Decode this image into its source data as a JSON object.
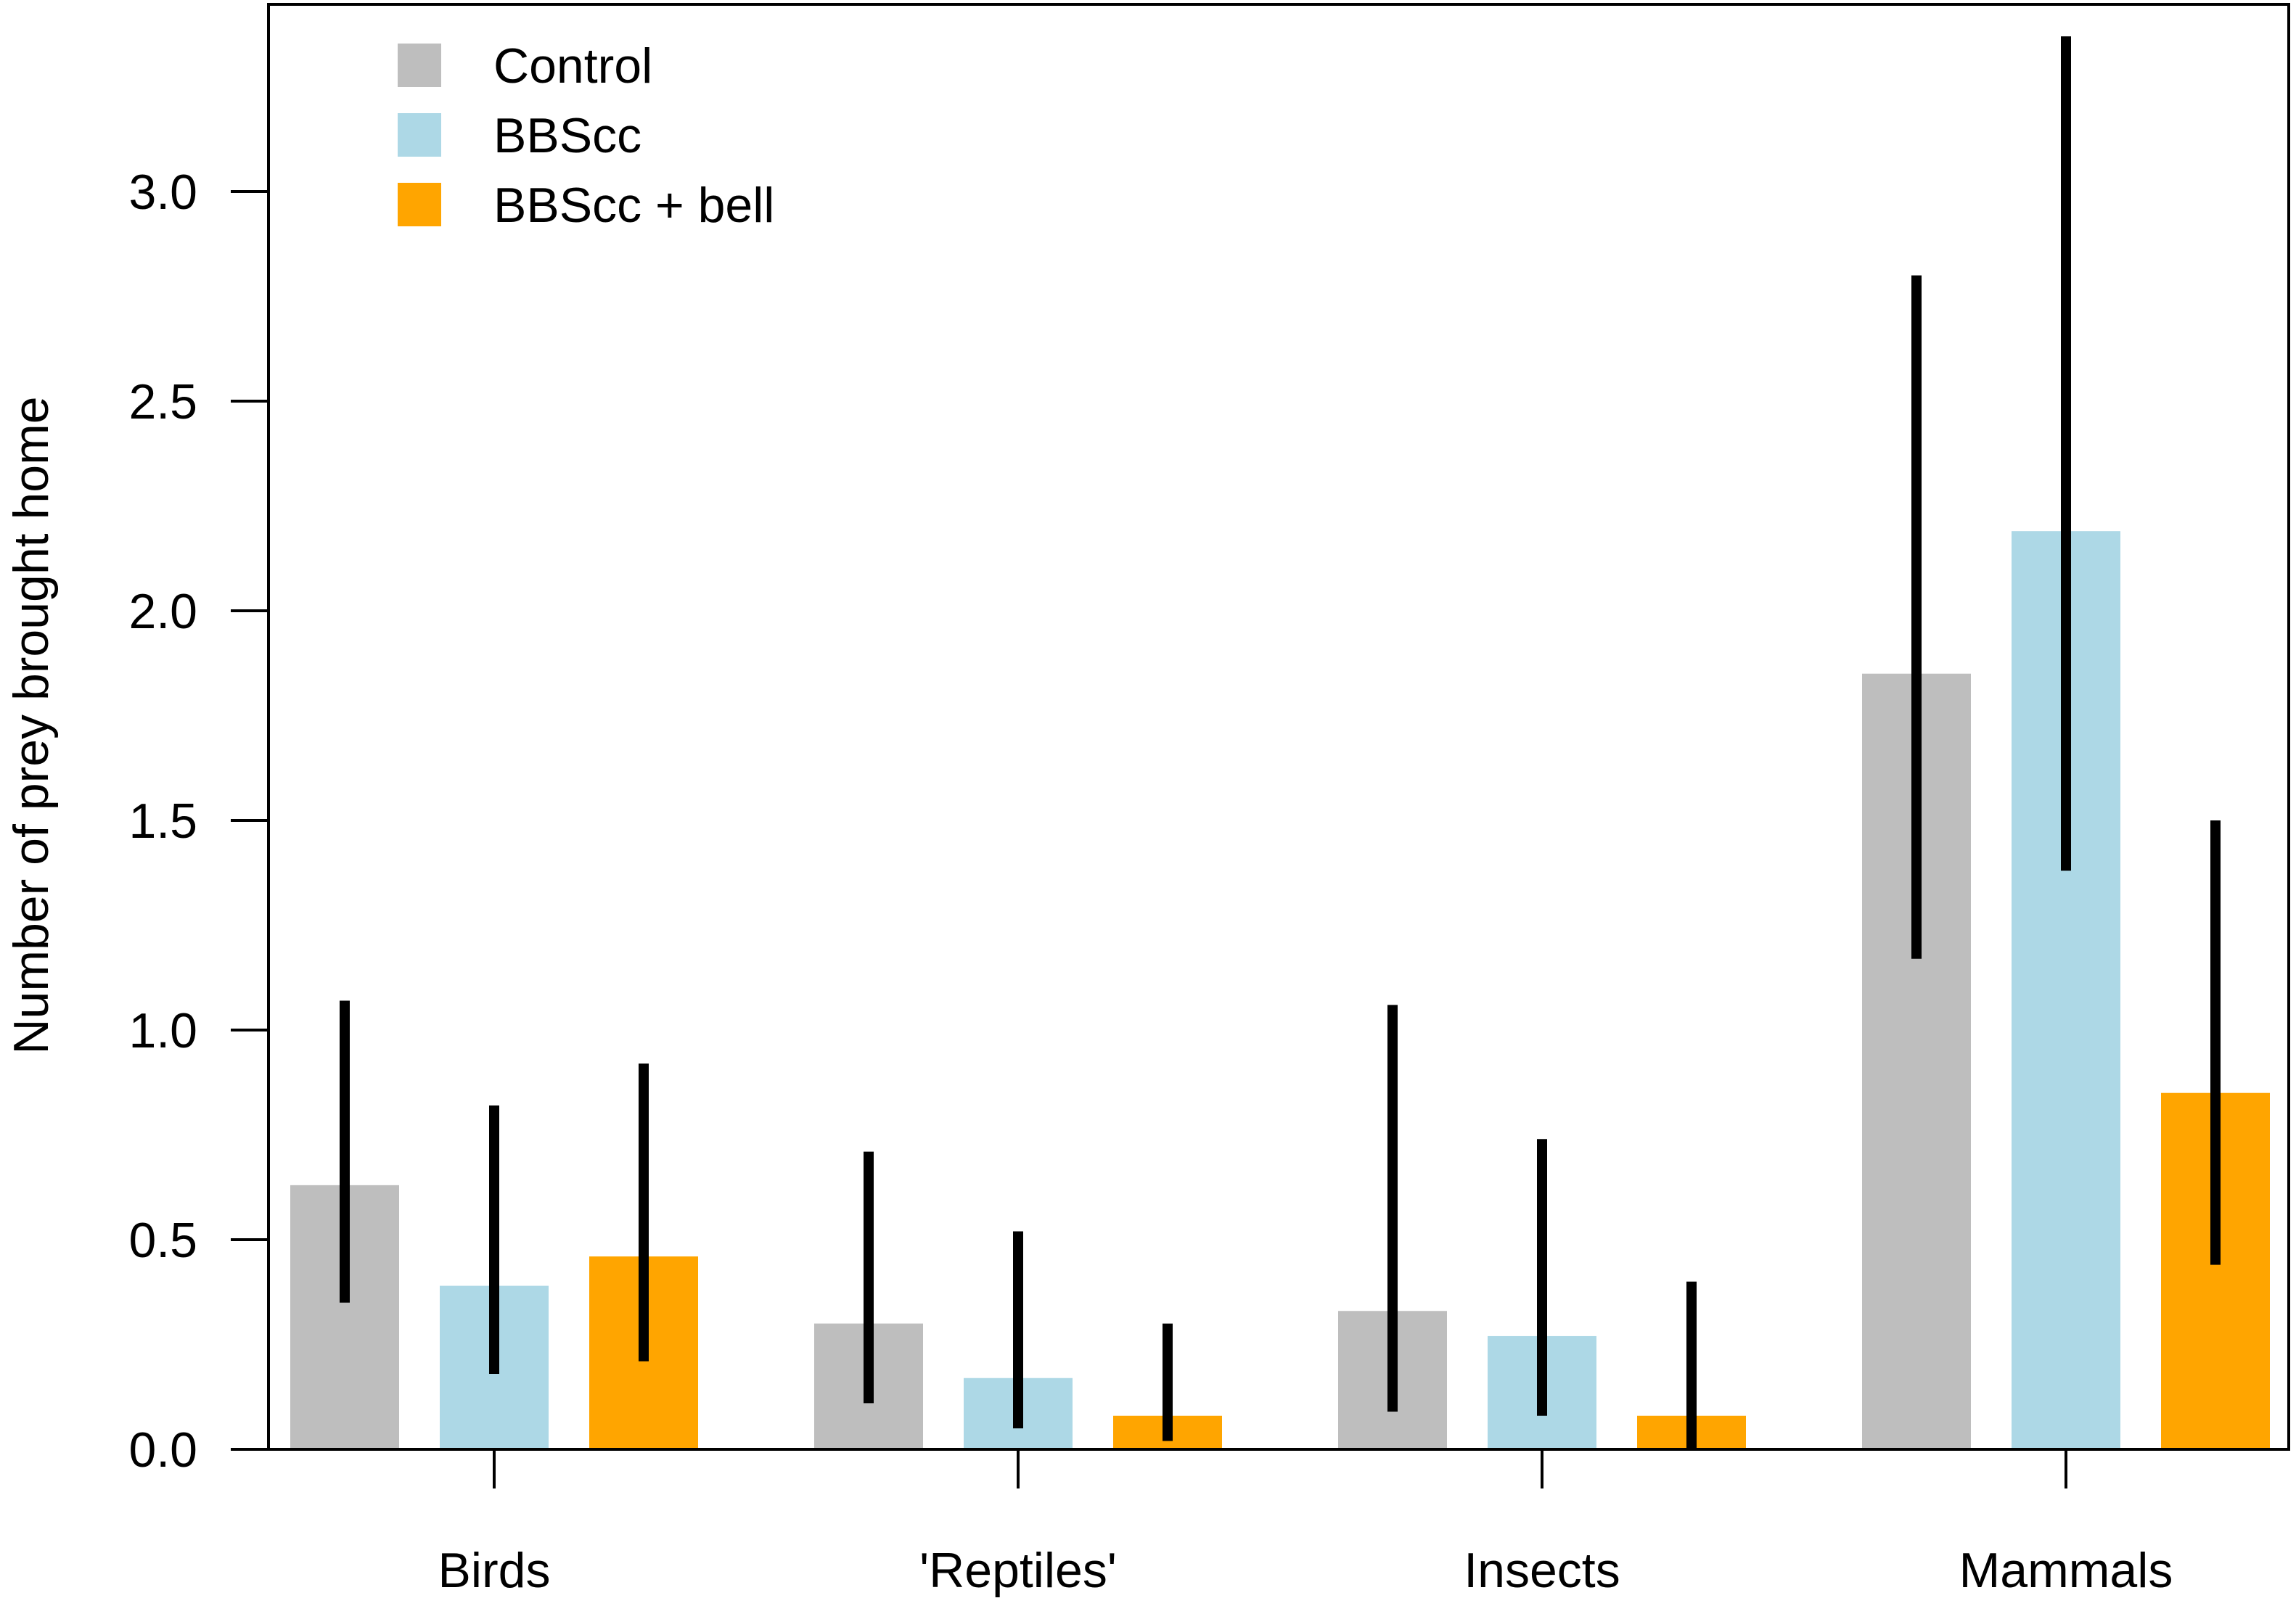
{
  "chart_data": {
    "type": "bar",
    "title": "",
    "xlabel": "",
    "ylabel": "Number of prey brought home",
    "ylim": [
      0,
      3.4
    ],
    "yticks": [
      0.0,
      0.5,
      1.0,
      1.5,
      2.0,
      2.5,
      3.0
    ],
    "ytick_labels": [
      "0.0",
      "0.5",
      "1.0",
      "1.5",
      "2.0",
      "2.5",
      "3.0"
    ],
    "categories": [
      "Birds",
      "'Reptiles'",
      "Insects",
      "Mammals"
    ],
    "series": [
      {
        "name": "Control",
        "color": "#bebebe",
        "values": [
          0.63,
          0.3,
          0.33,
          1.85
        ],
        "ci_low": [
          0.35,
          0.11,
          0.09,
          1.17
        ],
        "ci_high": [
          1.07,
          0.71,
          1.06,
          2.8
        ]
      },
      {
        "name": "BBScc",
        "color": "#add8e6",
        "values": [
          0.39,
          0.17,
          0.27,
          2.19
        ],
        "ci_low": [
          0.18,
          0.05,
          0.08,
          1.38
        ],
        "ci_high": [
          0.82,
          0.52,
          0.74,
          3.37
        ]
      },
      {
        "name": "BBScc + bell",
        "color": "#ffa500",
        "values": [
          0.46,
          0.08,
          0.08,
          0.85
        ],
        "ci_low": [
          0.21,
          0.02,
          0.0,
          0.44
        ],
        "ci_high": [
          0.92,
          0.3,
          0.4,
          1.5
        ]
      }
    ],
    "legend": {
      "position": "top-left",
      "entries": [
        "Control",
        "BBScc",
        "BBScc + bell"
      ]
    },
    "grid": false,
    "frame": true
  }
}
